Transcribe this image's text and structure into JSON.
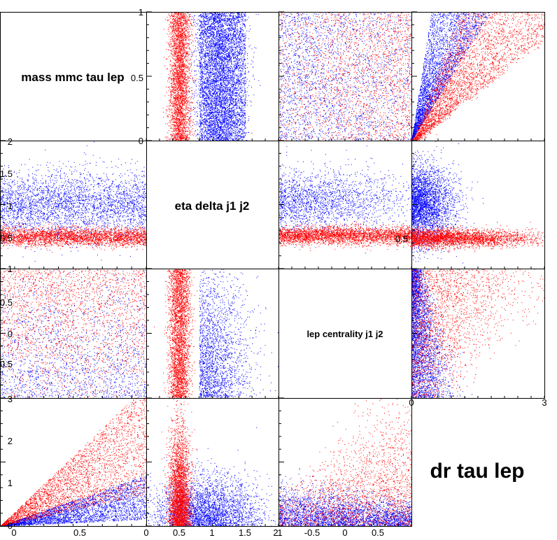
{
  "chart_data": {
    "type": "scatter",
    "layout": "scatter-matrix",
    "variables": [
      "mass mmc tau lep",
      "eta delta j1 j2",
      "lep centrality j1 j2",
      "dr tau lep"
    ],
    "series": [
      {
        "color": "#0000ff"
      },
      {
        "color": "#ff0000"
      }
    ],
    "ranges": {
      "mass mmc tau lep": [
        0,
        1
      ],
      "eta delta j1 j2": [
        0,
        2
      ],
      "lep centrality j1 j2": [
        -1,
        1
      ],
      "dr tau lep": [
        0,
        3
      ]
    },
    "tick_labels": {
      "row0_left": [
        "0",
        "0.5",
        "1"
      ],
      "row1_left": [
        "0.5",
        "1",
        "1.5",
        "2"
      ],
      "row1_right": [
        "0.5"
      ],
      "row2_left": [
        "0.5",
        "0",
        "0.5",
        "1"
      ],
      "row2_right_bottom": [
        "0",
        "3"
      ],
      "row3_left": [
        "0",
        "1",
        "2",
        "3"
      ],
      "bottom_col0": [
        "0",
        "0.5"
      ],
      "bottom_col1": [
        "0",
        "0.5",
        "1",
        "1.5",
        "2"
      ],
      "bottom_col2": [
        "1",
        "-0.5",
        "0",
        "0.5"
      ]
    },
    "cell_shapes": {
      "mass_vs_eta": {
        "blue": {
          "x_center": 0.95,
          "x_spread": 0.28
        },
        "red": {
          "x_center": 0.5,
          "x_spread": 0.1
        }
      },
      "mass_vs_centrality": {
        "blue": "uniform, denser at low centrality",
        "red": "uniform, denser at high centrality"
      },
      "mass_vs_dr": {
        "blue": "wedge dr ~ 0.4-0.9 of range",
        "red": "wedge below blue"
      },
      "eta_vs_centrality": {
        "blue": {
          "y_center": 1.0,
          "y_spread": 0.25
        },
        "red": {
          "y_center": 0.5,
          "y_spread": 0.08
        }
      },
      "centrality_vs_dr": {
        "blue": "concentrated at low dr",
        "red": "spreading to high dr"
      }
    }
  }
}
